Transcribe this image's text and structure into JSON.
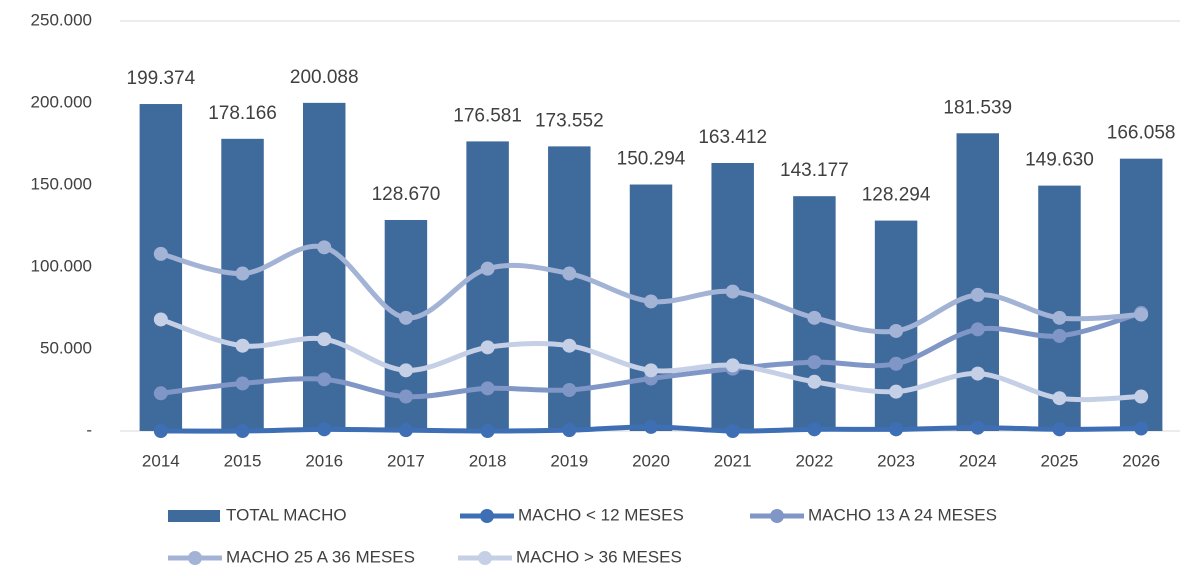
{
  "chart_data": {
    "type": "bar-line",
    "categories": [
      "2014",
      "2015",
      "2016",
      "2017",
      "2018",
      "2019",
      "2020",
      "2021",
      "2022",
      "2023",
      "2024",
      "2025",
      "2026"
    ],
    "ylim": [
      0,
      250000
    ],
    "yticks": [
      {
        "value": 0,
        "label": "-"
      },
      {
        "value": 50000,
        "label": "50.000"
      },
      {
        "value": 100000,
        "label": "100.000"
      },
      {
        "value": 150000,
        "label": "150.000"
      },
      {
        "value": 200000,
        "label": "200.000"
      },
      {
        "value": 250000,
        "label": "250.000"
      }
    ],
    "grid": false,
    "series": [
      {
        "name": "TOTAL MACHO",
        "type": "bar",
        "color": "#3f6a9c",
        "values": [
          199374,
          178166,
          200088,
          128670,
          176581,
          173552,
          150294,
          163412,
          143177,
          128294,
          181539,
          149630,
          166058
        ],
        "value_labels": [
          "199.374",
          "178.166",
          "200.088",
          "128.670",
          "176.581",
          "173.552",
          "150.294",
          "163.412",
          "143.177",
          "128.294",
          "181.539",
          "149.630",
          "166.058"
        ]
      },
      {
        "name": "MACHO < 12 MESES",
        "type": "line",
        "color": "#3e6fb5",
        "values": [
          0,
          0,
          1000,
          500,
          0,
          500,
          2500,
          0,
          1000,
          1000,
          2000,
          1000,
          1500
        ]
      },
      {
        "name": "MACHO 13 A 24 MESES",
        "type": "line",
        "color": "#7f96c6",
        "values": [
          23000,
          29000,
          31500,
          21000,
          26000,
          25000,
          32000,
          38000,
          42000,
          41000,
          62000,
          58000,
          72000
        ]
      },
      {
        "name": "MACHO 25 A 36 MESES",
        "type": "line",
        "color": "#a3b3d6",
        "values": [
          108000,
          96000,
          112000,
          69000,
          99000,
          96000,
          79000,
          85000,
          69000,
          61000,
          83000,
          69000,
          71000
        ]
      },
      {
        "name": "MACHO > 36 MESES",
        "type": "line",
        "color": "#c5cfe6",
        "values": [
          68000,
          52000,
          56000,
          37000,
          51000,
          52000,
          37000,
          40000,
          30000,
          24000,
          35000,
          20000,
          21000
        ]
      }
    ]
  }
}
